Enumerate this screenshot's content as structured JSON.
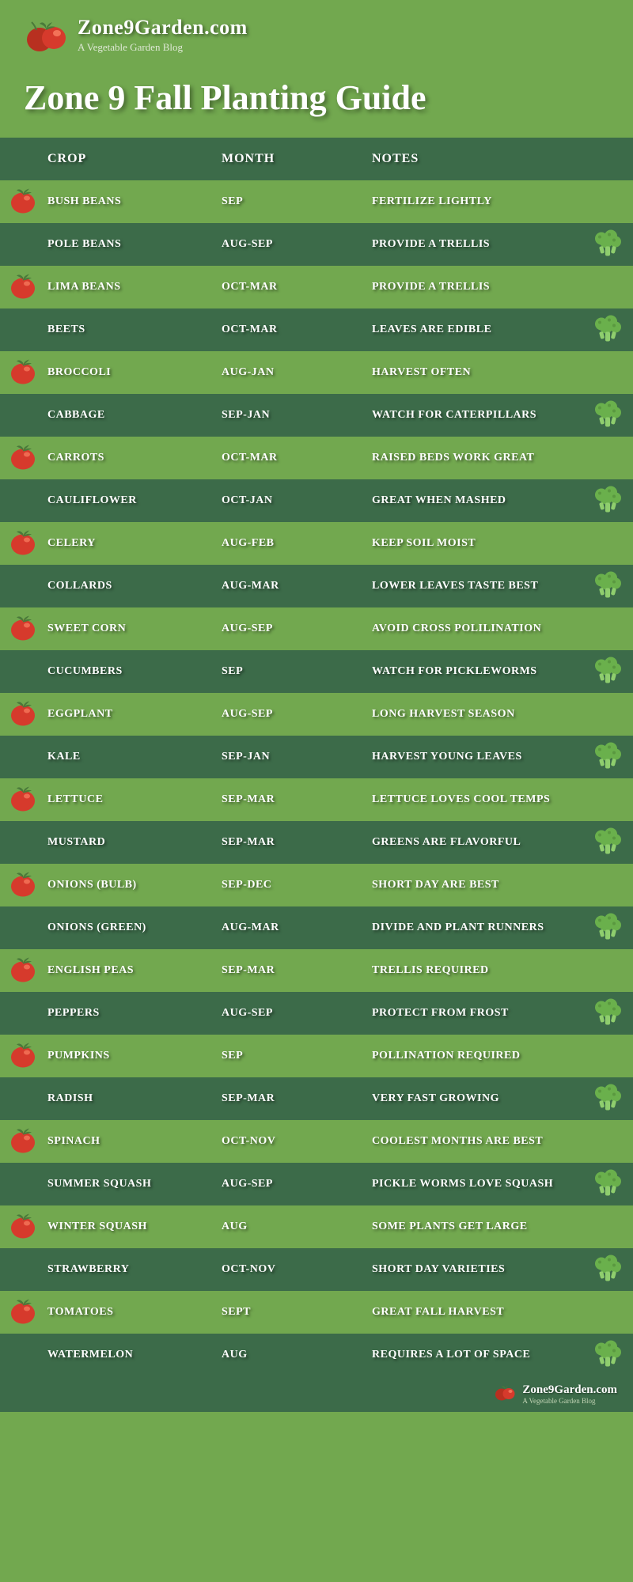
{
  "header": {
    "site_name": "Zone9Garden.com",
    "tagline": "A Vegetable Garden Blog",
    "title": "Zone 9 Fall Planting Guide"
  },
  "columns": {
    "crop": "CROP",
    "month": "MONTH",
    "notes": "NOTES"
  },
  "colors": {
    "row_dark": "#3c6b49",
    "row_light": "#72a84f",
    "background": "#72a84f",
    "text": "#ffffff",
    "tomato_body": "#d63a2c",
    "tomato_highlight": "#ff8a6b",
    "tomato_leaf": "#4a7a3a",
    "broccoli_head": "#6ab04c",
    "broccoli_stem": "#8fce6e"
  },
  "rows": [
    {
      "crop": "BUSH BEANS",
      "month": "SEP",
      "notes": "FERTILIZE LIGHTLY",
      "icon": "tomato"
    },
    {
      "crop": "POLE BEANS",
      "month": "AUG-SEP",
      "notes": "PROVIDE A TRELLIS",
      "icon": "broccoli"
    },
    {
      "crop": "LIMA BEANS",
      "month": "OCT-MAR",
      "notes": "PROVIDE A TRELLIS",
      "icon": "tomato"
    },
    {
      "crop": "BEETS",
      "month": "OCT-MAR",
      "notes": "LEAVES ARE EDIBLE",
      "icon": "broccoli"
    },
    {
      "crop": "BROCCOLI",
      "month": "AUG-JAN",
      "notes": "HARVEST OFTEN",
      "icon": "tomato"
    },
    {
      "crop": "CABBAGE",
      "month": "SEP-JAN",
      "notes": "WATCH FOR CATERPILLARS",
      "icon": "broccoli"
    },
    {
      "crop": "CARROTS",
      "month": "OCT-MAR",
      "notes": "RAISED BEDS WORK GREAT",
      "icon": "tomato"
    },
    {
      "crop": "CAULIFLOWER",
      "month": "OCT-JAN",
      "notes": "GREAT WHEN MASHED",
      "icon": "broccoli"
    },
    {
      "crop": "CELERY",
      "month": "AUG-FEB",
      "notes": "KEEP SOIL MOIST",
      "icon": "tomato"
    },
    {
      "crop": "COLLARDS",
      "month": "AUG-MAR",
      "notes": "LOWER LEAVES TASTE BEST",
      "icon": "broccoli"
    },
    {
      "crop": "SWEET CORN",
      "month": "AUG-SEP",
      "notes": "AVOID CROSS POLILINATION",
      "icon": "tomato"
    },
    {
      "crop": "CUCUMBERS",
      "month": "SEP",
      "notes": "WATCH FOR PICKLEWORMS",
      "icon": "broccoli"
    },
    {
      "crop": "EGGPLANT",
      "month": "AUG-SEP",
      "notes": "LONG HARVEST SEASON",
      "icon": "tomato"
    },
    {
      "crop": "KALE",
      "month": "SEP-JAN",
      "notes": "HARVEST YOUNG LEAVES",
      "icon": "broccoli"
    },
    {
      "crop": "LETTUCE",
      "month": "SEP-MAR",
      "notes": "LETTUCE LOVES COOL TEMPS",
      "icon": "tomato"
    },
    {
      "crop": "MUSTARD",
      "month": "SEP-MAR",
      "notes": "GREENS ARE FLAVORFUL",
      "icon": "broccoli"
    },
    {
      "crop": "ONIONS (BULB)",
      "month": "SEP-DEC",
      "notes": "SHORT DAY ARE BEST",
      "icon": "tomato"
    },
    {
      "crop": "ONIONS (GREEN)",
      "month": "AUG-MAR",
      "notes": "DIVIDE AND PLANT RUNNERS",
      "icon": "broccoli"
    },
    {
      "crop": "ENGLISH PEAS",
      "month": "SEP-MAR",
      "notes": "TRELLIS REQUIRED",
      "icon": "tomato"
    },
    {
      "crop": "PEPPERS",
      "month": "AUG-SEP",
      "notes": "PROTECT FROM FROST",
      "icon": "broccoli"
    },
    {
      "crop": "PUMPKINS",
      "month": "SEP",
      "notes": "POLLINATION REQUIRED",
      "icon": "tomato"
    },
    {
      "crop": "RADISH",
      "month": "SEP-MAR",
      "notes": "VERY FAST GROWING",
      "icon": "broccoli"
    },
    {
      "crop": "SPINACH",
      "month": "OCT-NOV",
      "notes": "COOLEST MONTHS ARE BEST",
      "icon": "tomato"
    },
    {
      "crop": "SUMMER SQUASH",
      "month": "AUG-SEP",
      "notes": "PICKLE WORMS LOVE SQUASH",
      "icon": "broccoli"
    },
    {
      "crop": "WINTER SQUASH",
      "month": "AUG",
      "notes": "SOME PLANTS GET LARGE",
      "icon": "tomato"
    },
    {
      "crop": "STRAWBERRY",
      "month": "OCT-NOV",
      "notes": "SHORT DAY VARIETIES",
      "icon": "broccoli"
    },
    {
      "crop": "TOMATOES",
      "month": "SEPT",
      "notes": "GREAT FALL HARVEST",
      "icon": "tomato"
    },
    {
      "crop": "WATERMELON",
      "month": "AUG",
      "notes": "REQUIRES A LOT OF SPACE",
      "icon": "broccoli"
    }
  ],
  "footer": {
    "site_name": "Zone9Garden.com",
    "tagline": "A Vegetable Garden Blog"
  }
}
